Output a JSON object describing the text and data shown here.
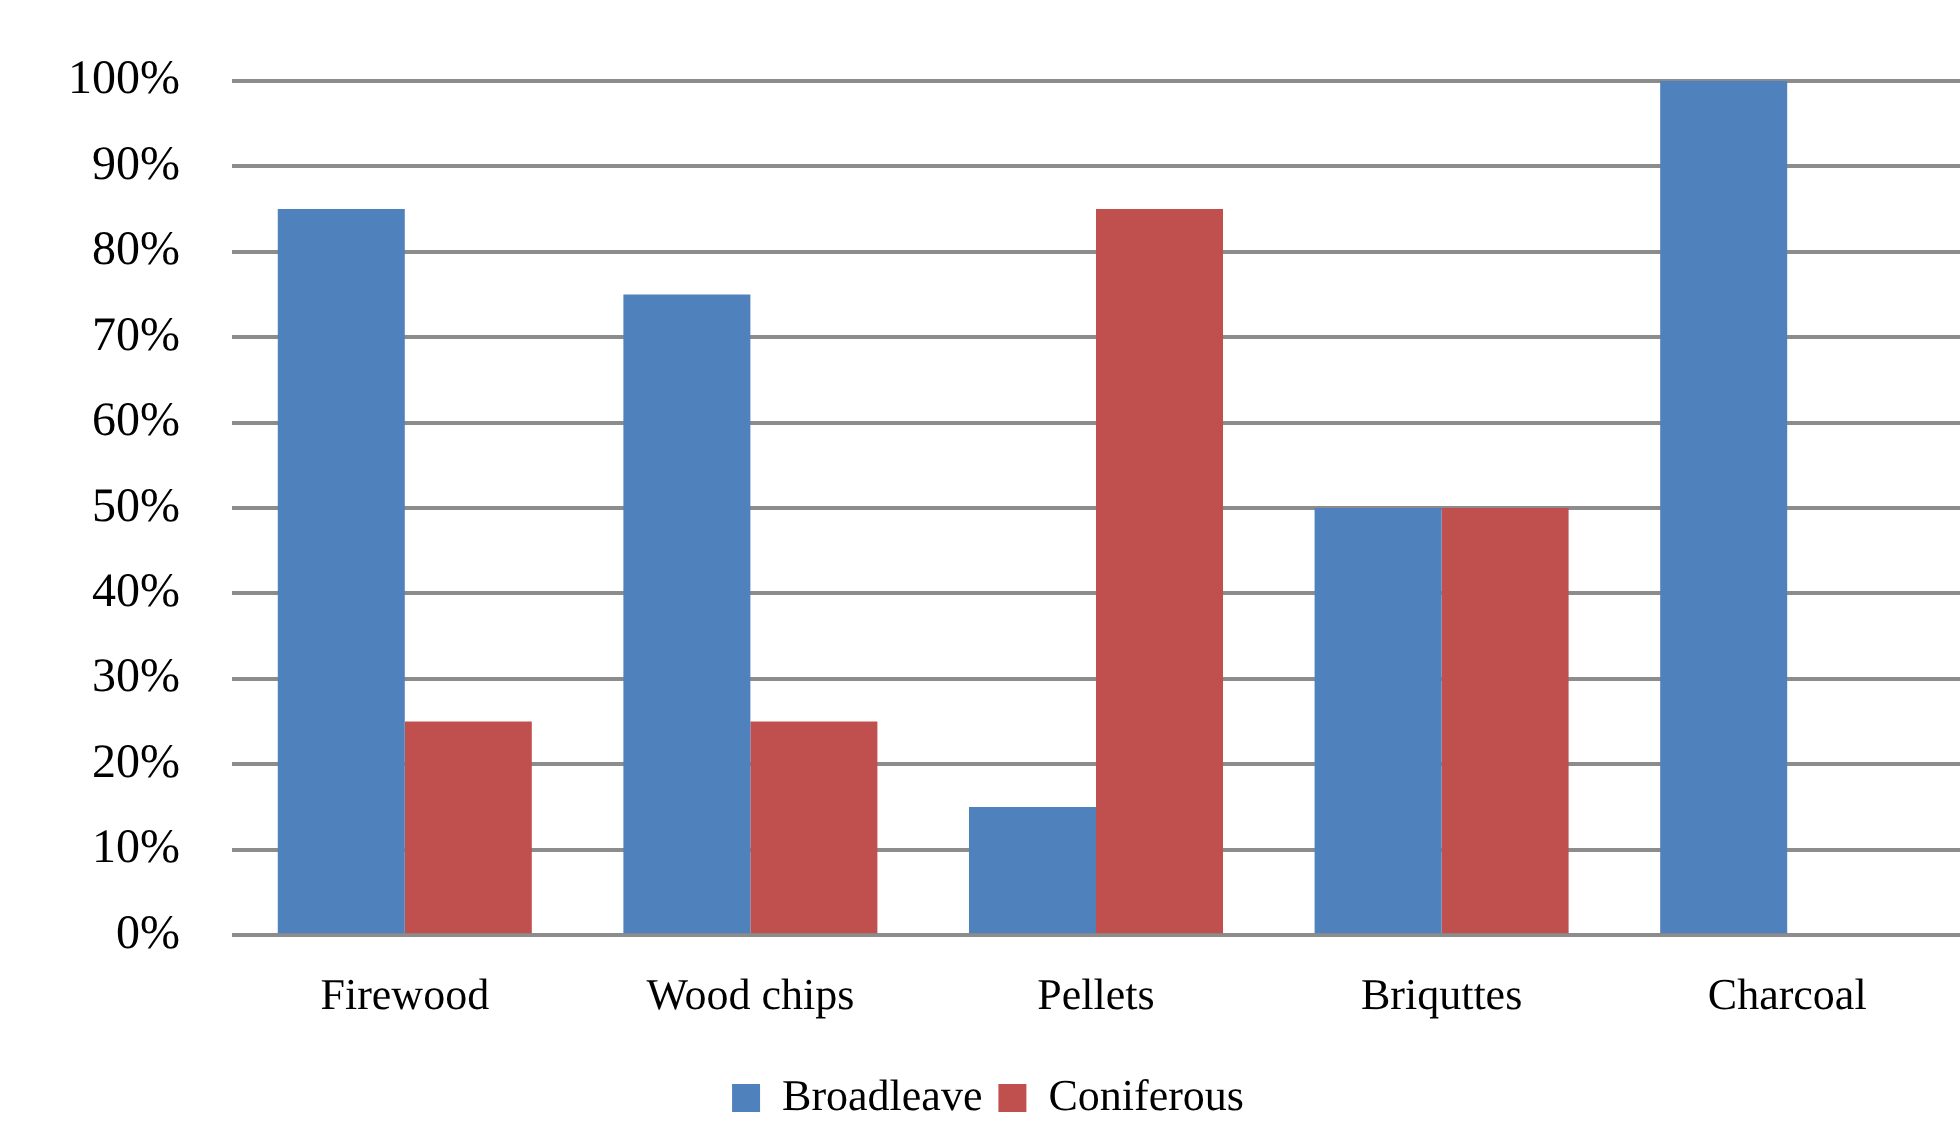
{
  "chart_data": {
    "type": "bar",
    "categories": [
      "Firewood",
      "Wood chips",
      "Pellets",
      "Briquttes",
      "Charcoal"
    ],
    "series": [
      {
        "name": "Broadleave",
        "color": "#4f81bd",
        "values": [
          85,
          75,
          15,
          50,
          100
        ]
      },
      {
        "name": "Coniferous",
        "color": "#c0504d",
        "values": [
          25,
          25,
          85,
          50,
          0
        ]
      }
    ],
    "ylim": [
      0,
      100
    ],
    "yticks": [
      {
        "value": 0,
        "label": "0%"
      },
      {
        "value": 10,
        "label": "10%"
      },
      {
        "value": 20,
        "label": "20%"
      },
      {
        "value": 30,
        "label": "30%"
      },
      {
        "value": 40,
        "label": "40%"
      },
      {
        "value": 50,
        "label": "50%"
      },
      {
        "value": 60,
        "label": "60%"
      },
      {
        "value": 70,
        "label": "70%"
      },
      {
        "value": 80,
        "label": "80%"
      },
      {
        "value": 90,
        "label": "90%"
      },
      {
        "value": 100,
        "label": "100%"
      }
    ],
    "grid": "y",
    "legend": "bottom"
  }
}
